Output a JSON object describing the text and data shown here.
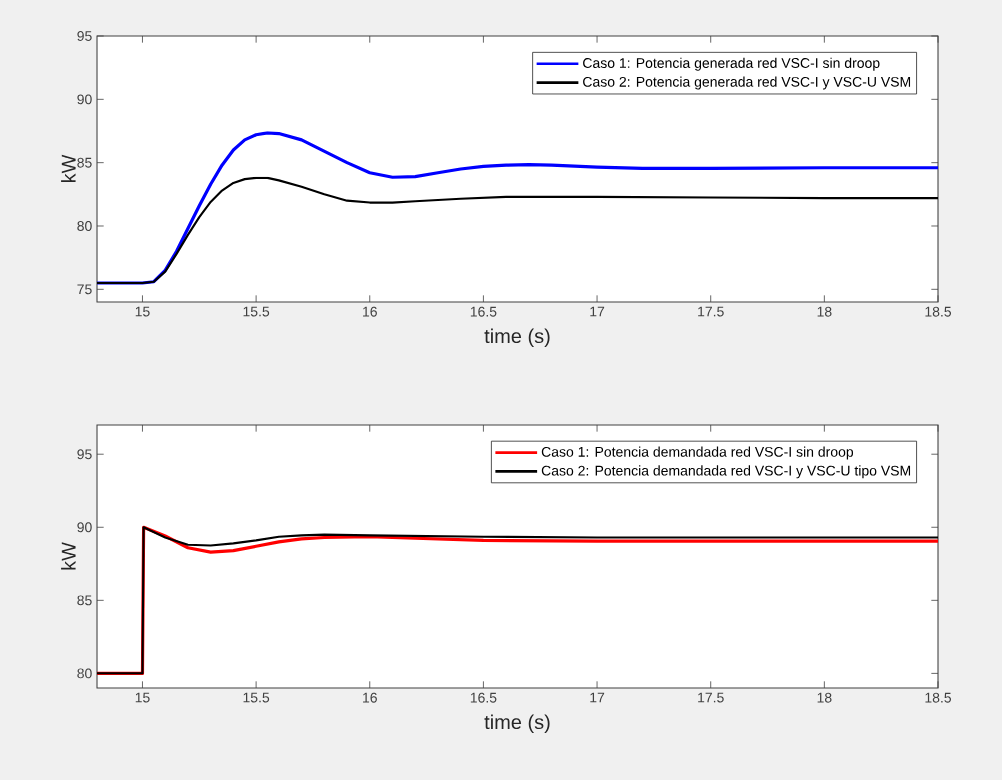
{
  "chart_data": [
    {
      "type": "line",
      "xlabel": "time (s)",
      "ylabel": "kW",
      "xlim": [
        14.8,
        18.5
      ],
      "ylim": [
        74,
        95
      ],
      "xticks": [
        15,
        15.5,
        16,
        16.5,
        17,
        17.5,
        18,
        18.5
      ],
      "yticks": [
        75,
        80,
        85,
        90,
        95
      ],
      "grid": false,
      "legend": "top right",
      "marker": "none",
      "line_style": "solid",
      "series": [
        {
          "name": "Caso 1: Potencia generada red VSC-I sin droop",
          "color": "#0000ff",
          "x": [
            14.8,
            15.0,
            15.05,
            15.1,
            15.15,
            15.2,
            15.25,
            15.3,
            15.35,
            15.4,
            15.45,
            15.5,
            15.55,
            15.6,
            15.7,
            15.8,
            15.9,
            16.0,
            16.1,
            16.2,
            16.3,
            16.4,
            16.5,
            16.6,
            16.7,
            16.8,
            17.0,
            17.2,
            17.5,
            18.0,
            18.5
          ],
          "values": [
            75.5,
            75.5,
            75.6,
            76.5,
            78.0,
            79.8,
            81.6,
            83.3,
            84.8,
            86.0,
            86.8,
            87.2,
            87.35,
            87.3,
            86.8,
            85.9,
            85.0,
            84.2,
            83.85,
            83.9,
            84.2,
            84.5,
            84.7,
            84.8,
            84.85,
            84.8,
            84.65,
            84.55,
            84.55,
            84.6,
            84.6
          ]
        },
        {
          "name": "Caso 2: Potencia generada red VSC-I y VSC-U VSM",
          "color": "#000000",
          "x": [
            14.8,
            15.0,
            15.05,
            15.1,
            15.15,
            15.2,
            15.25,
            15.3,
            15.35,
            15.4,
            15.45,
            15.5,
            15.55,
            15.6,
            15.7,
            15.8,
            15.9,
            16.0,
            16.1,
            16.2,
            16.4,
            16.6,
            16.8,
            17.0,
            17.5,
            18.0,
            18.5
          ],
          "values": [
            75.5,
            75.5,
            75.6,
            76.4,
            77.8,
            79.3,
            80.7,
            81.9,
            82.8,
            83.4,
            83.7,
            83.8,
            83.8,
            83.6,
            83.1,
            82.5,
            82.0,
            81.85,
            81.85,
            81.95,
            82.15,
            82.3,
            82.3,
            82.3,
            82.25,
            82.2,
            82.2
          ]
        }
      ]
    },
    {
      "type": "line",
      "xlabel": "time (s)",
      "ylabel": "kW",
      "xlim": [
        14.8,
        18.5
      ],
      "ylim": [
        79,
        97
      ],
      "xticks": [
        15,
        15.5,
        16,
        16.5,
        17,
        17.5,
        18,
        18.5
      ],
      "yticks": [
        80,
        85,
        90,
        95
      ],
      "grid": false,
      "legend": "top right",
      "marker": "none",
      "line_style": "solid",
      "series": [
        {
          "name": "Caso 1: Potencia demandada red VSC-I sin droop",
          "color": "#ff0000",
          "x": [
            14.8,
            15.0,
            15.005,
            15.1,
            15.2,
            15.3,
            15.4,
            15.5,
            15.6,
            15.7,
            15.8,
            16.0,
            16.2,
            16.5,
            17.0,
            18.5
          ],
          "values": [
            80,
            80,
            90,
            89.4,
            88.6,
            88.3,
            88.4,
            88.7,
            89.0,
            89.2,
            89.3,
            89.35,
            89.25,
            89.1,
            89.05,
            89.05
          ]
        },
        {
          "name": "Caso 2: Potencia demandada red VSC-I y VSC-U tipo VSM",
          "color": "#000000",
          "x": [
            14.8,
            15.0,
            15.005,
            15.1,
            15.2,
            15.3,
            15.4,
            15.5,
            15.6,
            15.7,
            15.8,
            16.0,
            16.5,
            17.0,
            18.5
          ],
          "values": [
            80,
            80,
            90,
            89.3,
            88.8,
            88.75,
            88.9,
            89.1,
            89.35,
            89.45,
            89.5,
            89.45,
            89.35,
            89.3,
            89.3
          ]
        }
      ]
    }
  ]
}
